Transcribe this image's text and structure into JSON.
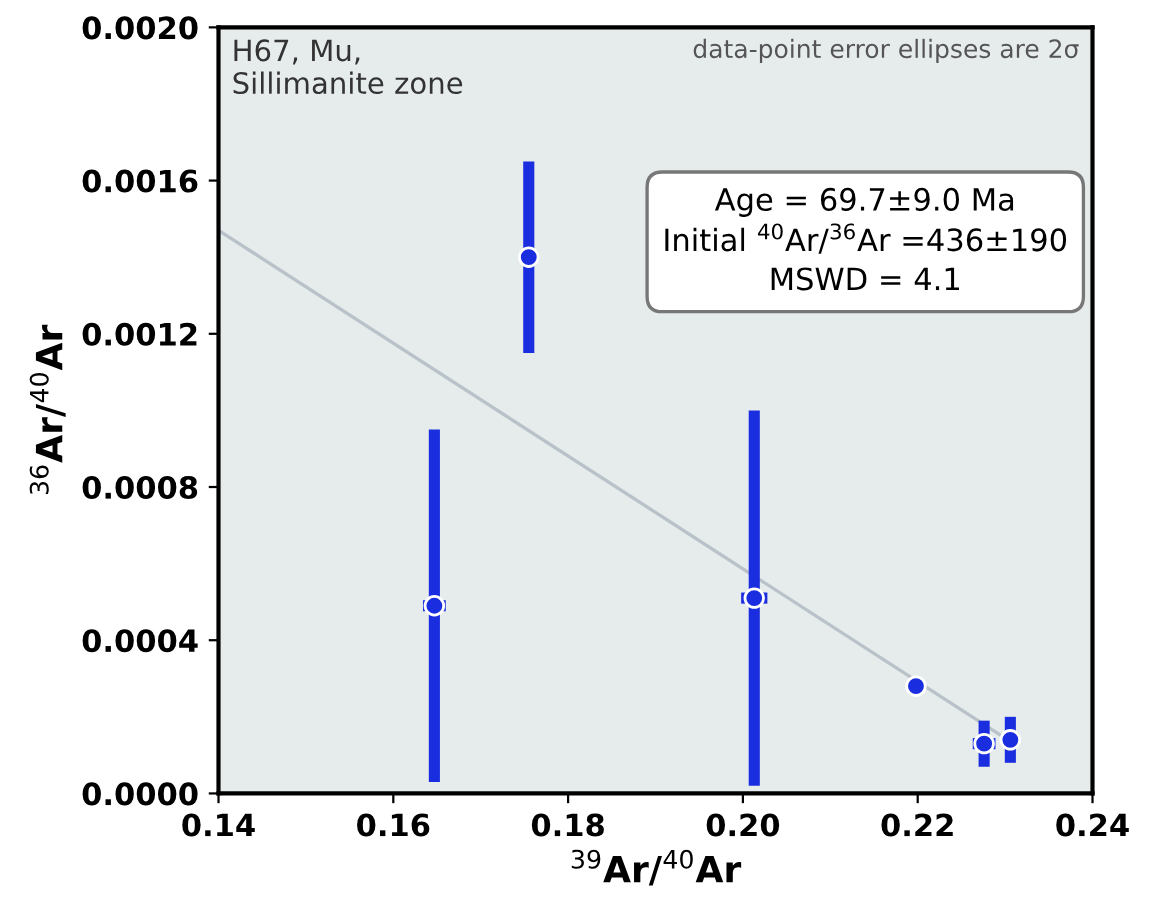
{
  "chart_data": {
    "type": "scatter",
    "xlabel": "$^{39}$Ar/$^{40}$Ar",
    "ylabel": "$^{36}$Ar/$^{40}$Ar",
    "xlim": [
      0.14,
      0.24
    ],
    "ylim": [
      0,
      0.002
    ],
    "xticks": [
      {
        "value": 0.14,
        "label": "0.14"
      },
      {
        "value": 0.16,
        "label": "0.16"
      },
      {
        "value": 0.18,
        "label": "0.18"
      },
      {
        "value": 0.2,
        "label": "0.20"
      },
      {
        "value": 0.22,
        "label": "0.22"
      },
      {
        "value": 0.24,
        "label": "0.24"
      }
    ],
    "yticks": [
      {
        "value": 0,
        "label": "0.0000"
      },
      {
        "value": 0.0004,
        "label": "0.0004"
      },
      {
        "value": 0.0008,
        "label": "0.0008"
      },
      {
        "value": 0.0012,
        "label": "0.0012"
      },
      {
        "value": 0.0016,
        "label": "0.0016"
      },
      {
        "value": 0.002,
        "label": "0.0020"
      }
    ],
    "series": [
      {
        "color": "#1a2ee0",
        "marker": "circle",
        "x": [
          0.1755,
          0.1647,
          0.2013,
          0.2198,
          0.2276,
          0.2306
        ],
        "values": [
          0.0014,
          0.00049,
          0.00051,
          0.00028,
          0.00013,
          0.00014
        ],
        "errors": [
          0.00025,
          0.00046,
          0.00049,
          2e-05,
          6e-05,
          6e-05
        ],
        "xerrors": [
          0.0009,
          0.0013,
          0.0015,
          0.0004,
          0.0013,
          0.0009
        ]
      },
      {
        "type": "line",
        "color": "#b8c2c8",
        "x": [
          0.14,
          0.231
        ],
        "values": [
          0.00147,
          0.00013
        ]
      }
    ],
    "annotations": [
      "H67, Mu,\nSillimanite zone",
      "data-point error ellipses are 2σ",
      "Age = 69.7±9.0 Ma\nInitial $^{40}$Ar/$^{36}$Ar =436±190\nMSWD = 4.1"
    ],
    "grid": false
  }
}
